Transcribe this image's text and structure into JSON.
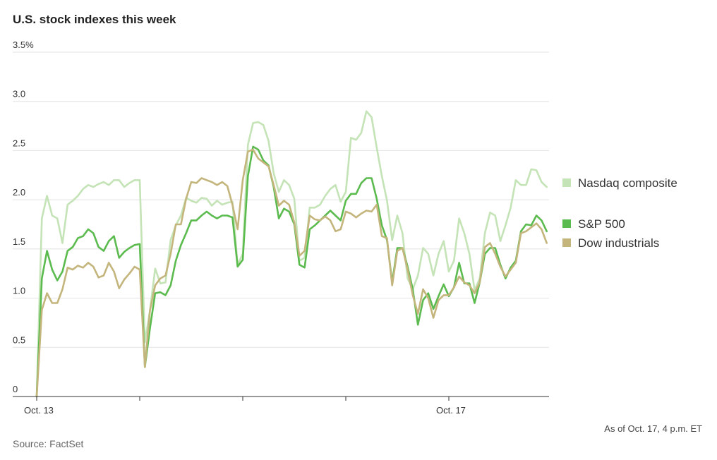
{
  "chart_data": {
    "type": "line",
    "title": "U.S. stock indexes this week",
    "xlabel": "",
    "ylabel": "",
    "x_unit": "trading days since Oct. 13 open",
    "x_start": 0,
    "x_step": 0.05,
    "xlim": [
      0,
      5
    ],
    "ylim": [
      0,
      3.5
    ],
    "y_ticks": [
      0,
      0.5,
      1.0,
      1.5,
      2.0,
      2.5,
      3.0,
      3.5
    ],
    "y_tick_labels": [
      "0",
      "0.5",
      "1.0",
      "1.5",
      "2.0",
      "2.5",
      "3.0",
      "3.5%"
    ],
    "x_ticks": [
      0,
      1,
      2,
      3,
      4
    ],
    "x_tick_labels": [
      "Oct. 13",
      "",
      "",
      "",
      "Oct. 17"
    ],
    "grid": true,
    "legend_position": "right",
    "series": [
      {
        "name": "Nasdaq composite",
        "color": "#c4e3b6",
        "values": [
          0,
          1.81,
          2.04,
          1.84,
          1.81,
          1.56,
          1.95,
          1.99,
          2.04,
          2.11,
          2.15,
          2.13,
          2.16,
          2.18,
          2.15,
          2.2,
          2.2,
          2.13,
          2.17,
          2.2,
          2.2,
          0.55,
          0.88,
          1.3,
          1.15,
          1.16,
          1.59,
          1.74,
          1.84,
          2.02,
          1.99,
          1.97,
          2.02,
          2.01,
          1.94,
          1.99,
          1.95,
          1.97,
          1.98,
          1.34,
          1.45,
          2.56,
          2.78,
          2.79,
          2.76,
          2.6,
          2.27,
          2.08,
          2.2,
          2.15,
          2.01,
          1.38,
          1.41,
          1.92,
          1.92,
          1.95,
          2.04,
          2.11,
          2.15,
          1.98,
          2.08,
          2.63,
          2.61,
          2.68,
          2.9,
          2.84,
          2.53,
          2.24,
          1.99,
          1.59,
          1.84,
          1.66,
          1.2,
          1.09,
          1.23,
          1.51,
          1.45,
          1.23,
          1.45,
          1.58,
          1.27,
          1.38,
          1.81,
          1.66,
          1.45,
          1.08,
          1.2,
          1.66,
          1.87,
          1.84,
          1.58,
          1.74,
          1.92,
          2.2,
          2.15,
          2.15,
          2.31,
          2.3,
          2.18,
          2.13
        ]
      },
      {
        "name": "S&P 500",
        "color": "#5bbb4e",
        "values": [
          0,
          1.2,
          1.48,
          1.29,
          1.18,
          1.27,
          1.48,
          1.52,
          1.61,
          1.63,
          1.7,
          1.66,
          1.52,
          1.48,
          1.58,
          1.63,
          1.41,
          1.47,
          1.51,
          1.54,
          1.55,
          0.3,
          0.7,
          1.05,
          1.06,
          1.03,
          1.13,
          1.38,
          1.54,
          1.66,
          1.79,
          1.79,
          1.84,
          1.88,
          1.84,
          1.81,
          1.84,
          1.84,
          1.82,
          1.32,
          1.39,
          2.24,
          2.54,
          2.51,
          2.4,
          2.35,
          2.13,
          1.81,
          1.91,
          1.88,
          1.75,
          1.34,
          1.31,
          1.7,
          1.74,
          1.79,
          1.84,
          1.89,
          1.84,
          1.79,
          1.99,
          2.06,
          2.06,
          2.17,
          2.22,
          2.22,
          2.01,
          1.74,
          1.59,
          1.16,
          1.51,
          1.51,
          1.32,
          1.09,
          0.73,
          0.98,
          1.05,
          0.89,
          1.02,
          1.14,
          1.02,
          1.11,
          1.36,
          1.15,
          1.15,
          0.95,
          1.16,
          1.45,
          1.51,
          1.51,
          1.34,
          1.2,
          1.31,
          1.38,
          1.68,
          1.75,
          1.74,
          1.84,
          1.79,
          1.68
        ]
      },
      {
        "name": "Dow industrials",
        "color": "#c3b57c",
        "values": [
          0,
          0.88,
          1.05,
          0.95,
          0.95,
          1.09,
          1.31,
          1.29,
          1.33,
          1.31,
          1.36,
          1.32,
          1.21,
          1.23,
          1.36,
          1.27,
          1.1,
          1.19,
          1.25,
          1.32,
          1.29,
          0.3,
          0.88,
          1.13,
          1.2,
          1.23,
          1.45,
          1.75,
          1.75,
          2.01,
          2.18,
          2.17,
          2.22,
          2.2,
          2.18,
          2.15,
          2.18,
          2.14,
          1.95,
          1.7,
          2.2,
          2.49,
          2.51,
          2.42,
          2.38,
          2.34,
          2.15,
          1.94,
          1.99,
          1.95,
          1.77,
          1.43,
          1.48,
          1.84,
          1.8,
          1.79,
          1.83,
          1.79,
          1.68,
          1.7,
          1.88,
          1.86,
          1.82,
          1.86,
          1.89,
          1.88,
          1.95,
          1.63,
          1.61,
          1.13,
          1.48,
          1.51,
          1.29,
          1.03,
          0.84,
          1.09,
          1.0,
          0.8,
          0.98,
          1.03,
          1.03,
          1.11,
          1.22,
          1.16,
          1.13,
          1.05,
          1.16,
          1.52,
          1.56,
          1.45,
          1.32,
          1.22,
          1.29,
          1.36,
          1.66,
          1.68,
          1.72,
          1.76,
          1.7,
          1.56
        ]
      }
    ],
    "footnote": "As of Oct. 17, 4 p.m. ET",
    "source": "Source: FactSet"
  }
}
